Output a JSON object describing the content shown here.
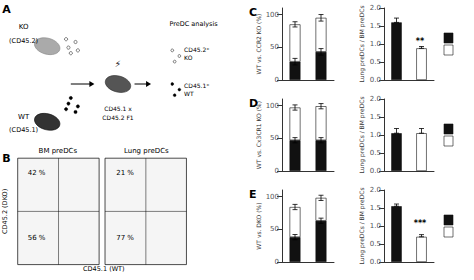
{
  "annotations": [
    "A",
    "KO",
    "(CD45.2)",
    "WT",
    "(CD45.1)",
    "⚡",
    "CD45.1 x",
    "CD45.2 F1",
    "PreDC analysis",
    "CD45.2⁺\nKO",
    "CD45.1⁺\nWT",
    "B",
    "BM preDCs",
    "Lung preDCs",
    "42 %",
    "56 %",
    "21 %",
    "77 %",
    "CD45.2 (DKO)",
    "CD45.1 (WT)"
  ],
  "chart_data": [
    {
      "type": "bar",
      "title": "C",
      "stacked": true,
      "categories": [
        null,
        null
      ],
      "series": [
        {
          "color": "#111111",
          "values": [
            28,
            43
          ],
          "yerr": [
            5,
            5
          ]
        },
        {
          "color": "#ffffff",
          "values": [
            57,
            52
          ],
          "yerr": [
            4,
            5
          ]
        }
      ],
      "ylabel": "WT vs. CCR2 KO (%)",
      "ylim": [
        0,
        110
      ],
      "yticks": [
        0,
        50,
        100
      ],
      "grid": false,
      "tick_labels": "y"
    },
    {
      "type": "bar",
      "categories": [
        null,
        null
      ],
      "values": [
        1.6,
        0.88
      ],
      "colors": [
        "#111111",
        "#ffffff"
      ],
      "yerr_upper": [
        0.12,
        0.05
      ],
      "ylabel": "Lung preDCs / BM preDCs",
      "ylim": [
        0.0,
        2.0
      ],
      "yticks": [
        {
          "value": 0,
          "label": "0.0"
        },
        0.5,
        {
          "value": 1,
          "label": "1.0"
        },
        1.5,
        {
          "value": 2,
          "label": "2.0"
        }
      ],
      "grid": false,
      "tick_labels": "y",
      "annotations": [
        "**"
      ]
    },
    {
      "type": "bar",
      "title": "D",
      "stacked": true,
      "categories": [
        null,
        null
      ],
      "series": [
        {
          "color": "#111111",
          "values": [
            47,
            47
          ],
          "yerr": [
            4,
            4
          ]
        },
        {
          "color": "#ffffff",
          "values": [
            50,
            52
          ],
          "yerr": [
            4,
            4
          ]
        }
      ],
      "ylabel": "WT vs. Cx3CR1 KO (%)",
      "ylim": [
        0,
        110
      ],
      "yticks": [
        0,
        50,
        100
      ],
      "grid": false,
      "tick_labels": "y"
    },
    {
      "type": "bar",
      "categories": [
        null,
        null
      ],
      "values": [
        1.05,
        1.05
      ],
      "colors": [
        "#111111",
        "#ffffff"
      ],
      "yerr_upper": [
        0.13,
        0.13
      ],
      "ylabel": "Lung preDCs / BM preDCs",
      "ylim": [
        0.0,
        2.0
      ],
      "yticks": [
        {
          "value": 0,
          "label": "0.0"
        },
        0.5,
        {
          "value": 1,
          "label": "1.0"
        },
        1.5,
        {
          "value": 2,
          "label": "2.0"
        }
      ],
      "grid": false,
      "tick_labels": "y"
    },
    {
      "type": "bar",
      "title": "E",
      "stacked": true,
      "categories": [
        null,
        null
      ],
      "series": [
        {
          "color": "#111111",
          "values": [
            38,
            63
          ],
          "yerr": [
            4,
            4
          ]
        },
        {
          "color": "#ffffff",
          "values": [
            46,
            35
          ],
          "yerr": [
            4,
            4
          ]
        }
      ],
      "ylabel": "WT vs. DKO (%)",
      "ylim": [
        0,
        110
      ],
      "yticks": [
        0,
        50,
        100
      ],
      "grid": false,
      "tick_labels": "y"
    },
    {
      "type": "bar",
      "categories": [
        null,
        null
      ],
      "values": [
        1.55,
        0.7
      ],
      "colors": [
        "#111111",
        "#ffffff"
      ],
      "yerr_upper": [
        0.06,
        0.06
      ],
      "ylabel": "Lung preDCs / BM preDCs",
      "ylim": [
        0.0,
        2.0
      ],
      "yticks": [
        {
          "value": 0,
          "label": "0.0"
        },
        0.5,
        {
          "value": 1,
          "label": "1.0"
        },
        1.5,
        {
          "value": 2,
          "label": "2.0"
        }
      ],
      "grid": false,
      "tick_labels": "y",
      "annotations": [
        "***"
      ]
    }
  ]
}
